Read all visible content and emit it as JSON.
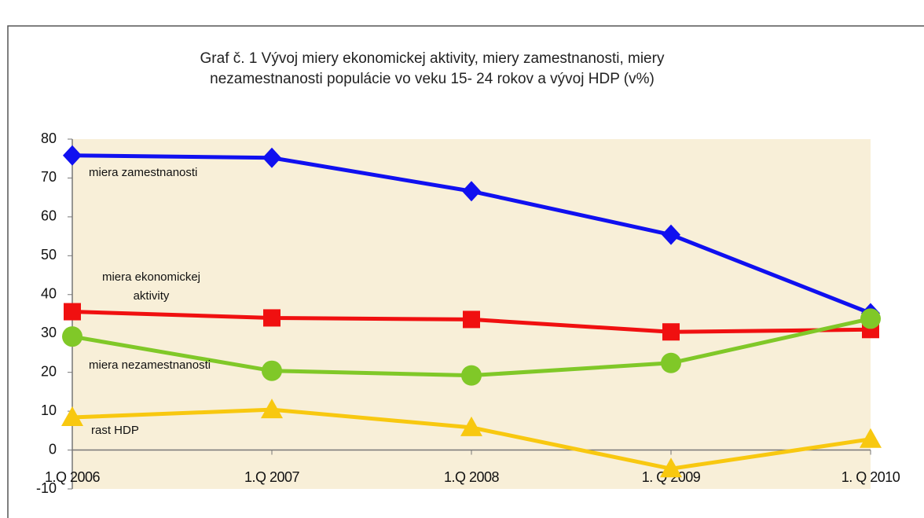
{
  "chart_data": {
    "type": "line",
    "title": [
      "Graf č. 1   Vývoj miery ekonomickej aktivity, miery zamestnanosti, miery",
      "nezamestnanosti populácie vo veku 15- 24 rokov a vývoj HDP (v%)"
    ],
    "categories": [
      "1.Q 2006",
      "1.Q 2007",
      "1.Q 2008",
      "1. Q 2009",
      "1. Q 2010"
    ],
    "series": [
      {
        "name": "miera zamestnanosti",
        "color": "#1010f0",
        "marker": "diamond",
        "values": [
          75.8,
          75.2,
          66.6,
          55.4,
          35.2
        ]
      },
      {
        "name": "miera ekonomickej aktivity",
        "color": "#f01010",
        "marker": "square",
        "values": [
          35.6,
          34.0,
          33.6,
          30.4,
          31.0
        ]
      },
      {
        "name": "miera nezamestnanosti",
        "color": "#80c828",
        "marker": "circle",
        "values": [
          29.2,
          20.4,
          19.2,
          22.4,
          33.8
        ]
      },
      {
        "name": "rast HDP",
        "color": "#f8c810",
        "marker": "triangle",
        "values": [
          8.4,
          10.4,
          5.8,
          -4.8,
          2.8
        ]
      }
    ],
    "ylim": [
      -10,
      80
    ],
    "yticks": [
      -10,
      0,
      10,
      20,
      30,
      40,
      50,
      60,
      70,
      80
    ],
    "grid": false
  }
}
